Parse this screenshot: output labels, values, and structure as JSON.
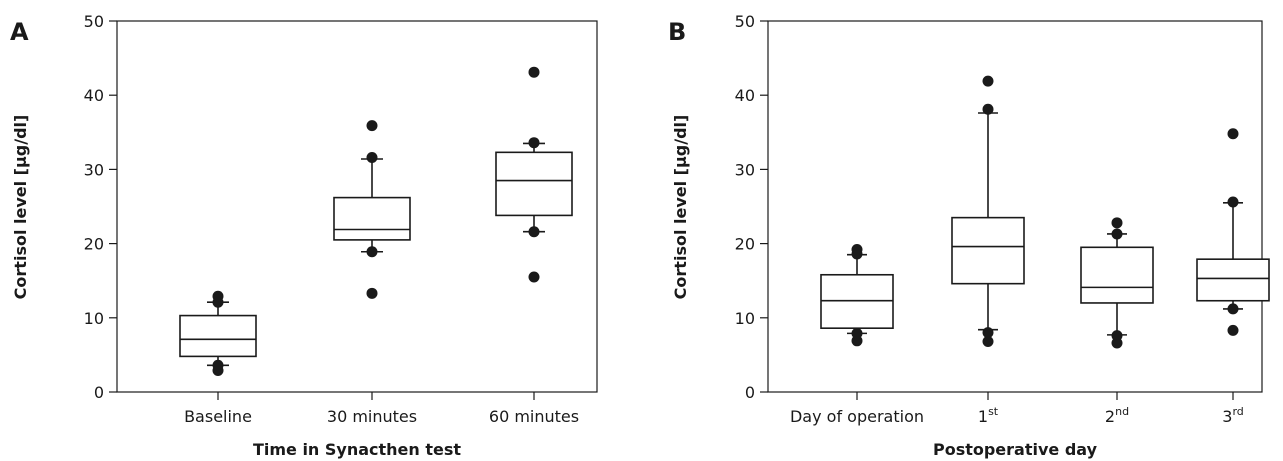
{
  "chart_data": [
    {
      "type": "box",
      "panel_label": "A",
      "xlabel": "Time in Synacthen test",
      "ylabel": "Cortisol level [µg/dl]",
      "ylim": [
        0,
        50
      ],
      "yticks": [
        0,
        10,
        20,
        30,
        40,
        50
      ],
      "categories": [
        {
          "label": "Baseline",
          "sup": ""
        },
        {
          "label": "30 minutes",
          "sup": ""
        },
        {
          "label": "60 minutes",
          "sup": ""
        }
      ],
      "boxes": [
        {
          "q1": 4.8,
          "median": 7.1,
          "q3": 10.3,
          "whisker_low": 3.6,
          "whisker_high": 12.1,
          "points": [
            2.9,
            3.6,
            12.1,
            12.9
          ]
        },
        {
          "q1": 20.5,
          "median": 21.9,
          "q3": 26.2,
          "whisker_low": 18.9,
          "whisker_high": 31.4,
          "points": [
            13.3,
            18.9,
            31.6,
            35.9
          ]
        },
        {
          "q1": 23.8,
          "median": 28.5,
          "q3": 32.3,
          "whisker_low": 21.6,
          "whisker_high": 33.5,
          "points": [
            15.5,
            21.6,
            33.6,
            43.1
          ]
        }
      ]
    },
    {
      "type": "box",
      "panel_label": "B",
      "xlabel": "Postoperative day",
      "ylabel": "Cortisol level [µg/dl]",
      "ylim": [
        0,
        50
      ],
      "yticks": [
        0,
        10,
        20,
        30,
        40,
        50
      ],
      "categories": [
        {
          "label": "Day of operation",
          "sup": ""
        },
        {
          "label": "1",
          "sup": "st"
        },
        {
          "label": "2",
          "sup": "nd"
        },
        {
          "label": "3",
          "sup": "rd"
        }
      ],
      "boxes": [
        {
          "q1": 8.6,
          "median": 12.3,
          "q3": 15.8,
          "whisker_low": 7.9,
          "whisker_high": 18.5,
          "points": [
            6.9,
            7.9,
            18.6,
            19.2
          ]
        },
        {
          "q1": 14.6,
          "median": 19.6,
          "q3": 23.5,
          "whisker_low": 8.4,
          "whisker_high": 37.6,
          "points": [
            6.8,
            8.0,
            38.1,
            41.9
          ]
        },
        {
          "q1": 12.0,
          "median": 14.1,
          "q3": 19.5,
          "whisker_low": 7.7,
          "whisker_high": 21.3,
          "points": [
            6.6,
            7.6,
            21.3,
            22.8
          ]
        },
        {
          "q1": 12.3,
          "median": 15.3,
          "q3": 17.9,
          "whisker_low": 11.2,
          "whisker_high": 25.5,
          "points": [
            8.3,
            11.2,
            25.6,
            34.8
          ]
        }
      ]
    }
  ]
}
